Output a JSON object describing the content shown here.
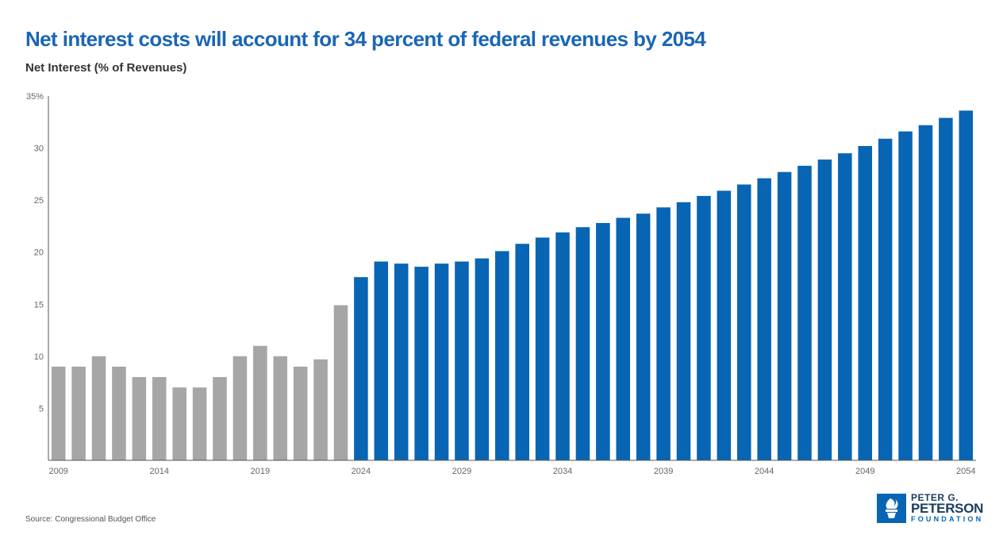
{
  "colors": {
    "title": "#1a66b5",
    "historical": "#a6a6a6",
    "projected": "#0765b3",
    "axis": "#555555",
    "tick_text": "#666666",
    "logo_text": "#1a3c5e",
    "logo_blue": "#0765b3"
  },
  "chart_data": {
    "type": "bar",
    "title": "Net interest costs will account for 34 percent of federal revenues by 2054",
    "ylabel": "Net Interest (% of Revenues)",
    "xlabel": "",
    "ylim": [
      0,
      35
    ],
    "yticks": [
      5,
      10,
      15,
      20,
      25,
      30,
      35
    ],
    "ytick_labels": [
      "5",
      "10",
      "15",
      "20",
      "25",
      "30",
      "35%"
    ],
    "xtick_labels": [
      "2009",
      "2014",
      "2019",
      "2024",
      "2029",
      "2034",
      "2039",
      "2044",
      "2049",
      "2054"
    ],
    "grid": false,
    "categories": [
      2009,
      2010,
      2011,
      2012,
      2013,
      2014,
      2015,
      2016,
      2017,
      2018,
      2019,
      2020,
      2021,
      2022,
      2023,
      2024,
      2025,
      2026,
      2027,
      2028,
      2029,
      2030,
      2031,
      2032,
      2033,
      2034,
      2035,
      2036,
      2037,
      2038,
      2039,
      2040,
      2041,
      2042,
      2043,
      2044,
      2045,
      2046,
      2047,
      2048,
      2049,
      2050,
      2051,
      2052,
      2053,
      2054
    ],
    "values": [
      9.0,
      9.0,
      10.0,
      9.0,
      8.0,
      8.0,
      7.0,
      7.0,
      8.0,
      10.0,
      11.0,
      10.0,
      9.0,
      9.7,
      14.9,
      17.6,
      19.1,
      18.9,
      18.6,
      18.9,
      19.1,
      19.4,
      20.1,
      20.8,
      21.4,
      21.9,
      22.4,
      22.8,
      23.3,
      23.7,
      24.3,
      24.8,
      25.4,
      25.9,
      26.5,
      27.1,
      27.7,
      28.3,
      28.9,
      29.5,
      30.2,
      30.9,
      31.6,
      32.2,
      32.9,
      33.6
    ],
    "historical_through": 2023
  },
  "source": "Source: Congressional Budget Office",
  "logo": {
    "line1": "PETER G.",
    "line2": "PETERSON",
    "line3": "FOUNDATION"
  }
}
